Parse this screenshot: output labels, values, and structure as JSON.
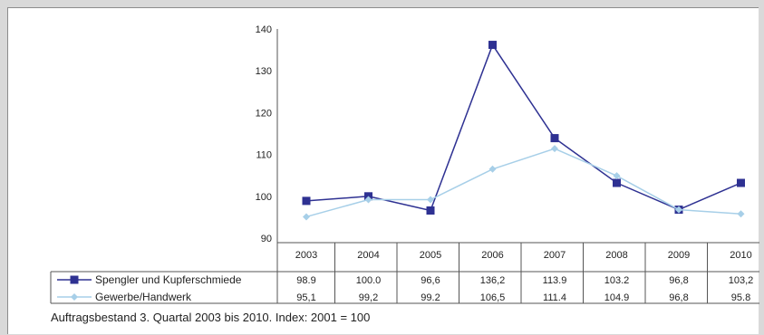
{
  "chart_data": {
    "type": "line",
    "categories": [
      "2003",
      "2004",
      "2005",
      "2006",
      "2007",
      "2008",
      "2009",
      "2010"
    ],
    "ylim": [
      90,
      140
    ],
    "yticks": [
      90,
      100,
      110,
      120,
      130,
      140
    ],
    "series": [
      {
        "name": "Spengler und Kupferschmiede",
        "values": [
          98.9,
          100.0,
          96.6,
          136.2,
          113.9,
          103.2,
          96.8,
          103.2
        ],
        "value_labels": [
          "98.9",
          "100.0",
          "96,6",
          "136,2",
          "113.9",
          "103.2",
          "96,8",
          "103,2"
        ],
        "color": "#2e3192",
        "marker": "square"
      },
      {
        "name": "Gewerbe/Handwerk",
        "values": [
          95.1,
          99.2,
          99.2,
          106.5,
          111.4,
          104.9,
          96.8,
          95.8
        ],
        "value_labels": [
          "95,1",
          "99,2",
          "99.2",
          "106,5",
          "111.4",
          "104.9",
          "96,8",
          "95.8"
        ],
        "color": "#a7cfe8",
        "marker": "diamond"
      }
    ],
    "grid": false,
    "legend": "table-below",
    "caption": "Auftragsbestand 3. Quartal 2003 bis 2010. Index: 2001 = 100"
  }
}
